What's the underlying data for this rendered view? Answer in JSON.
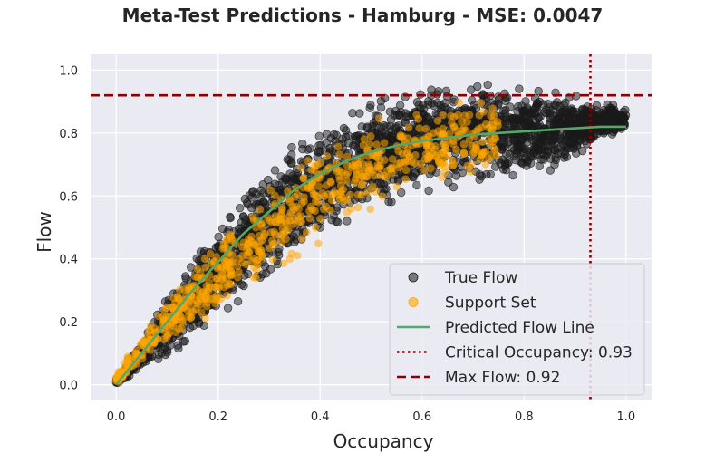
{
  "chart_data": {
    "type": "scatter",
    "title": "Meta-Test Predictions - Hamburg - MSE: 0.0047",
    "xlabel": "Occupancy",
    "ylabel": "Flow",
    "xlim": [
      -0.05,
      1.05
    ],
    "ylim": [
      -0.05,
      1.05
    ],
    "x_ticks": [
      "0.0",
      "0.2",
      "0.4",
      "0.6",
      "0.8",
      "1.0"
    ],
    "y_ticks": [
      "0.0",
      "0.2",
      "0.4",
      "0.6",
      "0.8",
      "1.0"
    ],
    "grid": true,
    "legend_position": "lower-right",
    "colors": {
      "background": "#eaeaf2",
      "true_flow": "#1a1a1a",
      "support_set": "#ffa500",
      "predicted_line": "#55a868",
      "critical": "#8b0000",
      "max_flow": "#8b0000"
    },
    "series": [
      {
        "name": "True Flow",
        "kind": "scatter",
        "envelope": {
          "x": [
            0.0,
            0.05,
            0.1,
            0.15,
            0.2,
            0.25,
            0.3,
            0.35,
            0.4,
            0.45,
            0.5,
            0.55,
            0.6,
            0.65,
            0.7,
            0.75,
            0.8,
            0.85,
            0.9,
            0.95,
            1.0
          ],
          "y_upper": [
            0.02,
            0.16,
            0.3,
            0.43,
            0.54,
            0.63,
            0.73,
            0.79,
            0.85,
            0.88,
            0.92,
            0.95,
            0.97,
            0.99,
            1.0,
            0.99,
            0.98,
            0.96,
            0.94,
            0.91,
            0.89
          ],
          "y_lower": [
            0.0,
            0.03,
            0.07,
            0.11,
            0.18,
            0.24,
            0.3,
            0.36,
            0.42,
            0.48,
            0.53,
            0.56,
            0.59,
            0.6,
            0.6,
            0.62,
            0.64,
            0.66,
            0.7,
            0.76,
            0.8
          ]
        }
      },
      {
        "name": "Support Set",
        "kind": "scatter",
        "envelope": {
          "x": [
            0.0,
            0.05,
            0.1,
            0.15,
            0.2,
            0.25,
            0.3,
            0.35,
            0.4,
            0.45,
            0.5,
            0.55,
            0.6,
            0.65,
            0.7,
            0.75
          ],
          "y_upper": [
            0.03,
            0.17,
            0.3,
            0.4,
            0.5,
            0.58,
            0.65,
            0.72,
            0.78,
            0.82,
            0.86,
            0.88,
            0.9,
            0.91,
            0.92,
            0.93
          ],
          "y_lower": [
            0.0,
            0.05,
            0.1,
            0.15,
            0.2,
            0.26,
            0.32,
            0.38,
            0.44,
            0.5,
            0.55,
            0.58,
            0.6,
            0.62,
            0.64,
            0.66
          ]
        }
      },
      {
        "name": "Predicted Flow Line",
        "kind": "line",
        "x": [
          0.0,
          0.05,
          0.1,
          0.15,
          0.2,
          0.25,
          0.3,
          0.35,
          0.4,
          0.45,
          0.5,
          0.55,
          0.6,
          0.65,
          0.7,
          0.75,
          0.8,
          0.85,
          0.9,
          0.95,
          1.0
        ],
        "y": [
          0.0,
          0.1,
          0.2,
          0.3,
          0.39,
          0.48,
          0.55,
          0.62,
          0.67,
          0.71,
          0.74,
          0.76,
          0.775,
          0.785,
          0.795,
          0.8,
          0.805,
          0.81,
          0.815,
          0.82,
          0.82
        ]
      }
    ],
    "reference_lines": [
      {
        "name": "Critical Occupancy: 0.93",
        "orientation": "vertical",
        "value": 0.93,
        "style": "dotted"
      },
      {
        "name": "Max Flow: 0.92",
        "orientation": "horizontal",
        "value": 0.92,
        "style": "dashed"
      }
    ]
  }
}
